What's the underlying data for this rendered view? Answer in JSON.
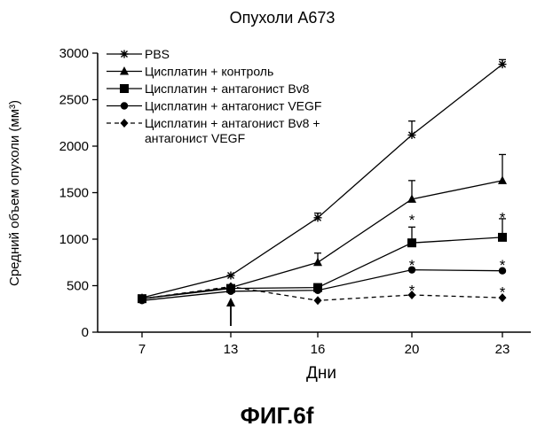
{
  "chart_data": {
    "type": "line",
    "title": "Опухоли А673",
    "xlabel": "Дни",
    "ylabel": "Средний объем опухоли (мм³)",
    "categories": [
      7,
      13,
      16,
      20,
      23
    ],
    "ylim": [
      0,
      3000
    ],
    "yticks": [
      0,
      500,
      1000,
      1500,
      2000,
      2500,
      3000
    ],
    "grid": false,
    "legend_position": "top-left",
    "series": [
      {
        "name": "PBS",
        "marker": "asterisk",
        "dash": false,
        "values": [
          370,
          610,
          1230,
          2120,
          2880
        ],
        "errors": [
          0,
          0,
          50,
          150,
          50
        ]
      },
      {
        "name": "Цисплатин + контроль",
        "marker": "triangle",
        "dash": false,
        "values": [
          360,
          480,
          750,
          1430,
          1630
        ],
        "errors": [
          0,
          0,
          100,
          200,
          280
        ]
      },
      {
        "name": "Цисплатин + антагонист Bv8",
        "marker": "square",
        "dash": false,
        "values": [
          360,
          470,
          480,
          960,
          1020
        ],
        "errors": [
          0,
          0,
          0,
          170,
          200
        ]
      },
      {
        "name": "Цисплатин + антагонист VEGF",
        "marker": "circle",
        "dash": false,
        "values": [
          340,
          440,
          450,
          670,
          660
        ],
        "errors": [
          0,
          0,
          0,
          0,
          0
        ]
      },
      {
        "name": "Цисплатин + антагонист Bv8 + антагонист VEGF",
        "marker": "diamond",
        "dash": true,
        "legend_lines": [
          "Цисплатин + антагонист Bv8 +",
          "антагонист VEGF"
        ],
        "values": [
          360,
          490,
          340,
          400,
          370
        ],
        "errors": [
          0,
          0,
          0,
          0,
          0
        ]
      }
    ],
    "annotations": [
      {
        "type": "significance",
        "symbol": "*",
        "x": 20,
        "y": 1250
      },
      {
        "type": "significance",
        "symbol": "*",
        "x": 20,
        "y": 760
      },
      {
        "type": "significance",
        "symbol": "*",
        "x": 20,
        "y": 490
      },
      {
        "type": "significance",
        "symbol": "*",
        "x": 23,
        "y": 1270
      },
      {
        "type": "significance",
        "symbol": "*",
        "x": 23,
        "y": 760
      },
      {
        "type": "significance",
        "symbol": "*",
        "x": 23,
        "y": 470
      },
      {
        "type": "arrow",
        "direction": "up",
        "x": 13,
        "note": "treatment start"
      }
    ]
  },
  "caption": "ФИГ.6f"
}
